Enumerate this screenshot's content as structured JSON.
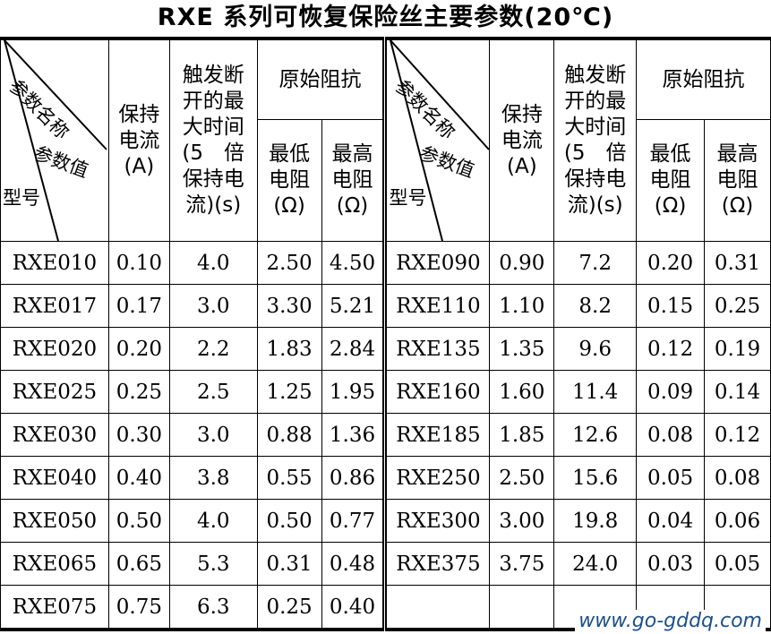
{
  "title": "RXE 系列可恢复保险丝主要参数(20℃)",
  "header": {
    "diag_param_name": "参数名称",
    "diag_param_value": "参数值",
    "diag_model": "型号",
    "hold_current": "保持\n电流\n(A)",
    "trip_time": "触发断\n开的最\n大时间\n(5　倍\n保持电\n流)(s)",
    "resistance": "原始阻抗",
    "min_resistance": "最低\n电阻\n(Ω)",
    "max_resistance": "最高\n电阻\n(Ω)"
  },
  "left_rows": [
    [
      "RXE010",
      "0.10",
      "4.0",
      "2.50",
      "4.50"
    ],
    [
      "RXE017",
      "0.17",
      "3.0",
      "3.30",
      "5.21"
    ],
    [
      "RXE020",
      "0.20",
      "2.2",
      "1.83",
      "2.84"
    ],
    [
      "RXE025",
      "0.25",
      "2.5",
      "1.25",
      "1.95"
    ],
    [
      "RXE030",
      "0.30",
      "3.0",
      "0.88",
      "1.36"
    ],
    [
      "RXE040",
      "0.40",
      "3.8",
      "0.55",
      "0.86"
    ],
    [
      "RXE050",
      "0.50",
      "4.0",
      "0.50",
      "0.77"
    ],
    [
      "RXE065",
      "0.65",
      "5.3",
      "0.31",
      "0.48"
    ],
    [
      "RXE075",
      "0.75",
      "6.3",
      "0.25",
      "0.40"
    ]
  ],
  "right_rows": [
    [
      "RXE090",
      "0.90",
      "7.2",
      "0.20",
      "0.31"
    ],
    [
      "RXE110",
      "1.10",
      "8.2",
      "0.15",
      "0.25"
    ],
    [
      "RXE135",
      "1.35",
      "9.6",
      "0.12",
      "0.19"
    ],
    [
      "RXE160",
      "1.60",
      "11.4",
      "0.09",
      "0.14"
    ],
    [
      "RXE185",
      "1.85",
      "12.6",
      "0.08",
      "0.12"
    ],
    [
      "RXE250",
      "2.50",
      "15.6",
      "0.05",
      "0.08"
    ],
    [
      "RXE300",
      "3.00",
      "19.8",
      "0.04",
      "0.06"
    ],
    [
      "RXE375",
      "3.75",
      "24.0",
      "0.03",
      "0.05"
    ],
    [
      "",
      "",
      "",
      "",
      ""
    ]
  ],
  "watermark": "www.go-gddq.com"
}
